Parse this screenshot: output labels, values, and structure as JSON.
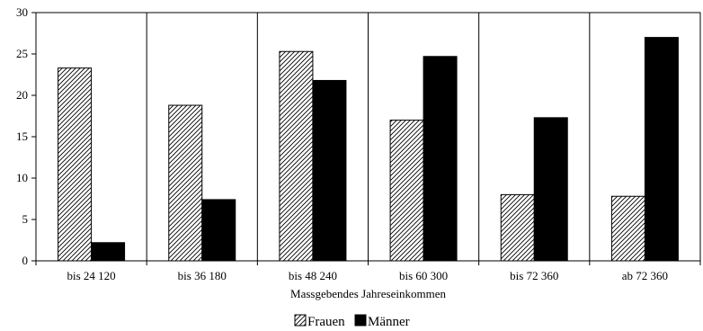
{
  "chart_data": {
    "type": "bar",
    "title": "",
    "xlabel": "Massgebendes Jahreseinkommen",
    "ylabel": "",
    "categories": [
      "bis 24 120",
      "bis 36 180",
      "bis 48 240",
      "bis 60 300",
      "bis 72 360",
      "ab 72 360"
    ],
    "series": [
      {
        "name": "Frauen",
        "values": [
          23.3,
          18.8,
          25.3,
          17.0,
          8.0,
          7.8
        ],
        "pattern": "diagonal-hatch",
        "color": "#000000"
      },
      {
        "name": "Männer",
        "values": [
          2.2,
          7.4,
          21.8,
          24.7,
          17.3,
          27.0
        ],
        "pattern": "solid",
        "color": "#000000"
      }
    ],
    "ylim": [
      0,
      30
    ],
    "yticks": [
      0,
      5,
      10,
      15,
      20,
      25,
      30
    ],
    "grid": {
      "vertical_category_separators": true,
      "horizontal": false
    },
    "legend_position": "bottom-center"
  }
}
